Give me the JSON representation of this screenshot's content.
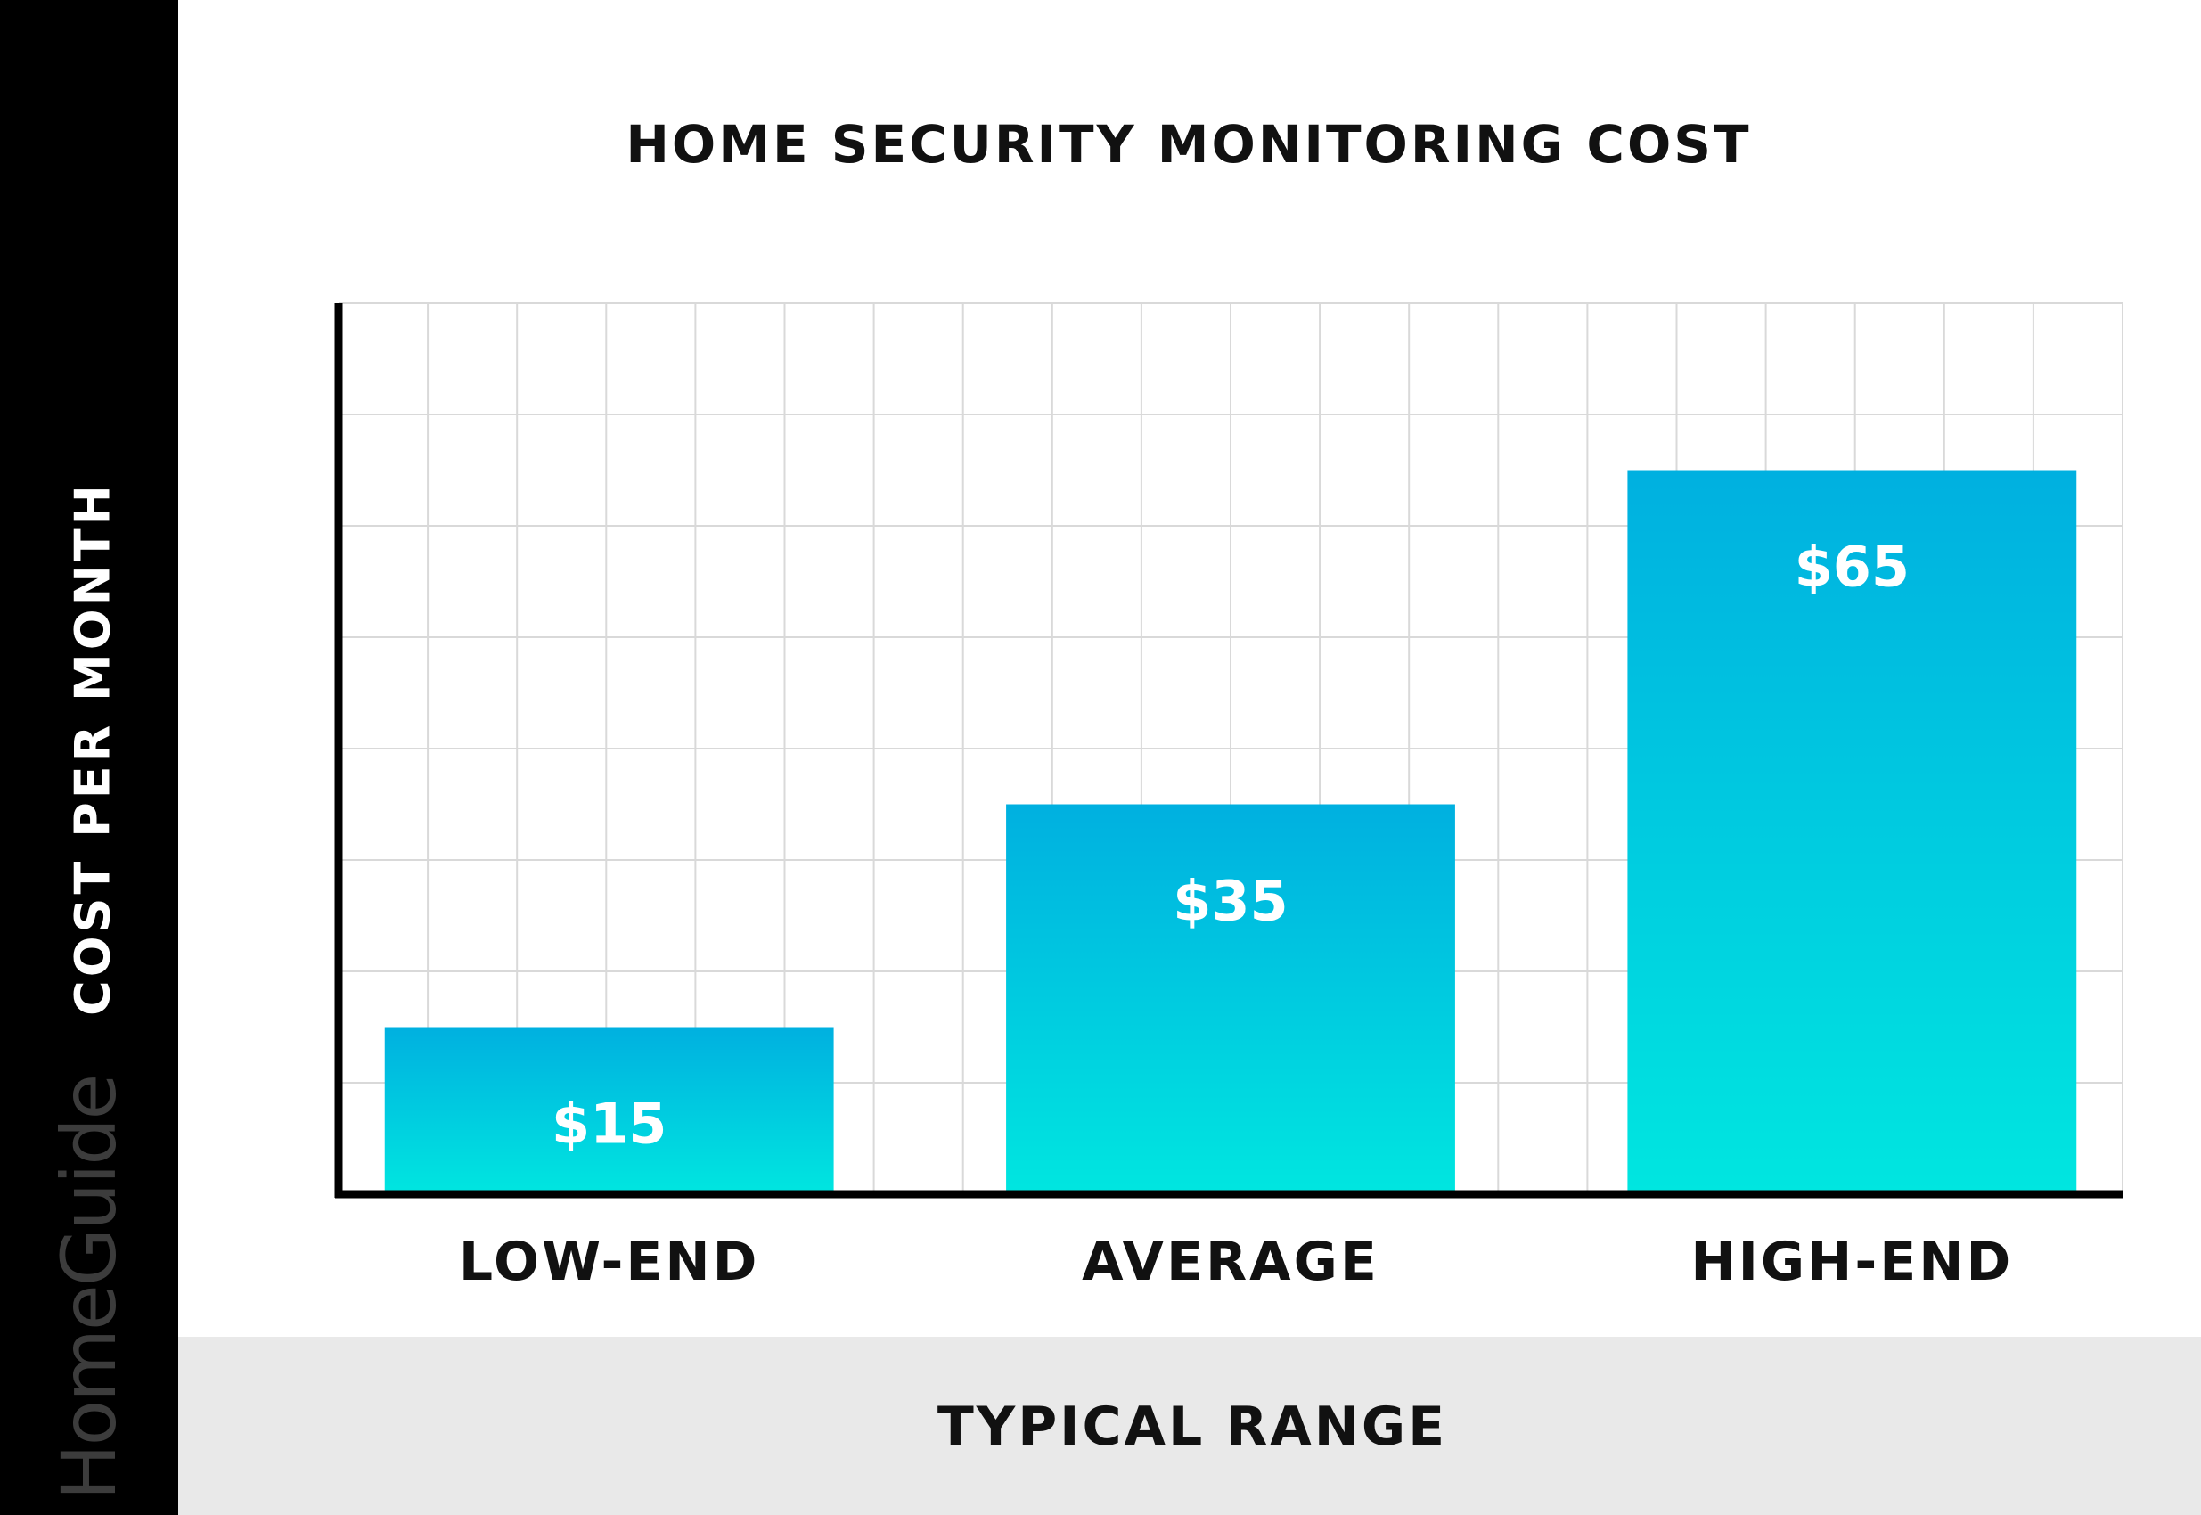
{
  "brand": "HomeGuide",
  "chart_data": {
    "type": "bar",
    "title": "HOME SECURITY MONITORING COST",
    "xlabel": "TYPICAL RANGE",
    "ylabel": "COST PER MONTH",
    "categories": [
      "LOW-END",
      "AVERAGE",
      "HIGH-END"
    ],
    "values": [
      15,
      35,
      65
    ],
    "value_labels": [
      "$15",
      "$35",
      "$65"
    ],
    "ylim": [
      0,
      80
    ],
    "grid": true,
    "legend": "none",
    "colors": {
      "bar_top": "#00b0e0",
      "bar_bottom": "#00e6e0",
      "grid": "#d9d9d9",
      "axis": "#000000"
    }
  }
}
